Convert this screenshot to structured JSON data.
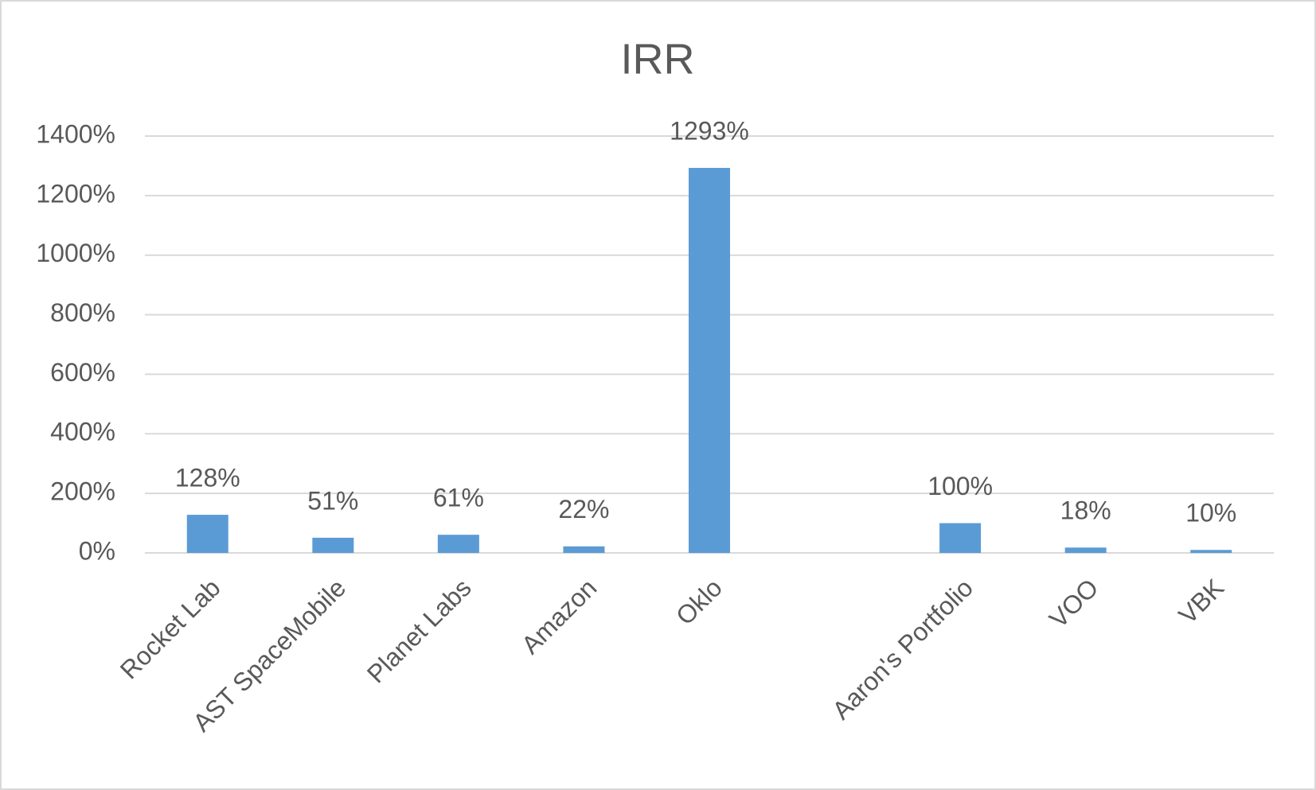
{
  "chart_data": {
    "type": "bar",
    "title": "IRR",
    "categories": [
      "Rocket Lab",
      "AST SpaceMobile",
      "Planet Labs",
      "Amazon",
      "Oklo",
      null,
      "Aaron's Portfolio",
      "VOO",
      "VBK"
    ],
    "values": [
      128,
      51,
      61,
      22,
      1293,
      null,
      100,
      18,
      10
    ],
    "value_labels": [
      "128%",
      "51%",
      "61%",
      "22%",
      "1293%",
      null,
      "100%",
      "18%",
      "10%"
    ],
    "color": "#5b9bd5",
    "ylim": [
      0,
      1400
    ],
    "yticks": [
      {
        "value": 0,
        "label": "0%"
      },
      {
        "value": 200,
        "label": "200%"
      },
      {
        "value": 400,
        "label": "400%"
      },
      {
        "value": 600,
        "label": "600%"
      },
      {
        "value": 800,
        "label": "800%"
      },
      {
        "value": 1000,
        "label": "1000%"
      },
      {
        "value": 1200,
        "label": "1200%"
      },
      {
        "value": 1400,
        "label": "1400%"
      }
    ],
    "grid": true
  }
}
